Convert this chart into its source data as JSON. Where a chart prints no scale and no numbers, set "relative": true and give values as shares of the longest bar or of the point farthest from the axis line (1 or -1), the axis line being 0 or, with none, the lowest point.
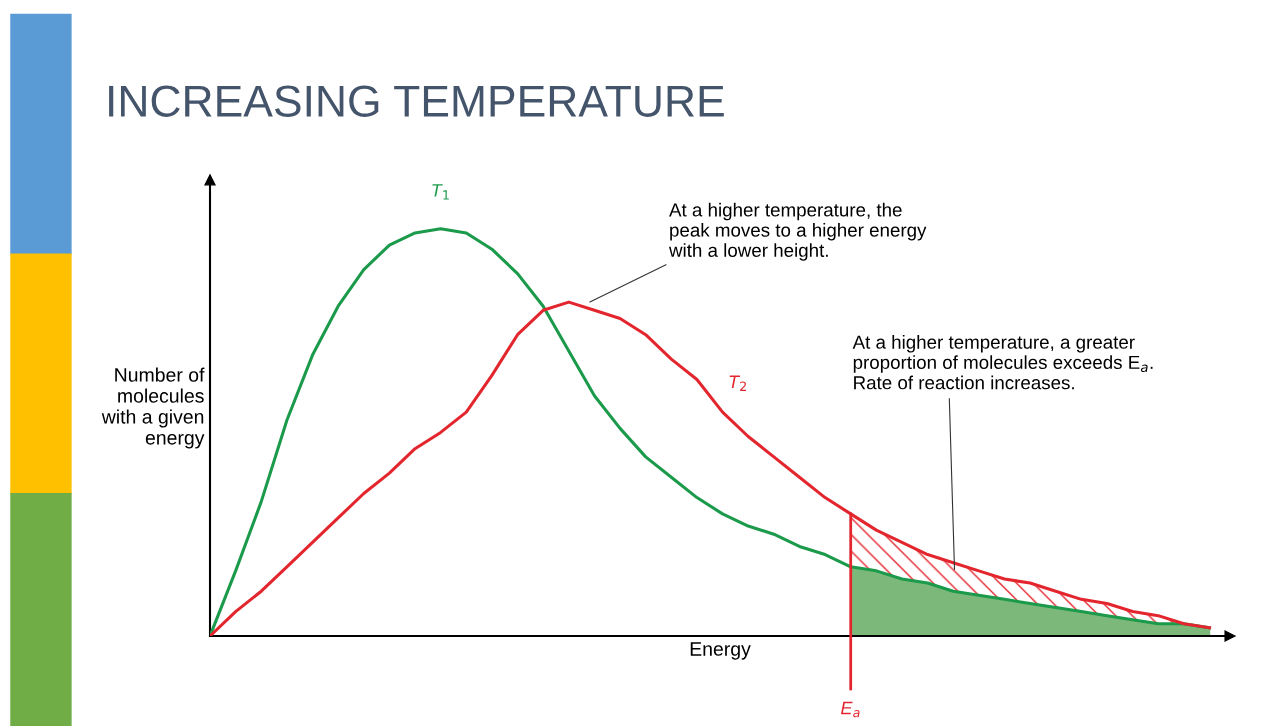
{
  "chart_data": {
    "type": "line",
    "title": "INCREASING TEMPERATURE",
    "xlabel": "Energy",
    "ylabel": "Number of\nmolecules\nwith a given\nenergy",
    "relative": true,
    "categories": [
      null,
      null,
      null,
      null,
      null,
      null,
      null,
      null,
      null,
      null,
      null,
      null,
      null,
      null,
      null,
      null,
      null,
      null,
      null,
      null,
      null,
      null,
      null,
      null,
      null,
      null,
      null,
      null,
      null,
      null,
      null,
      null,
      null,
      null,
      null,
      null,
      null,
      null,
      null,
      null
    ],
    "series": [
      {
        "name": "T$_{1}$",
        "color": "#1a9a4a",
        "values": [
          0,
          0.16,
          0.33,
          0.53,
          0.69,
          0.81,
          0.9,
          0.96,
          0.99,
          1.0,
          0.99,
          0.95,
          0.89,
          0.81,
          0.7,
          0.59,
          0.51,
          0.44,
          0.39,
          0.34,
          0.3,
          0.27,
          0.25,
          0.22,
          0.2,
          0.17,
          0.16,
          0.14,
          0.13,
          0.11,
          0.1,
          0.09,
          0.08,
          0.07,
          0.06,
          0.05,
          0.04,
          0.03,
          0.03,
          0.02
        ]
      },
      {
        "name": "T$_{2}$",
        "color": "#e3262e",
        "values": [
          0,
          0.06,
          0.11,
          0.17,
          0.23,
          0.29,
          0.35,
          0.4,
          0.46,
          0.5,
          0.55,
          0.64,
          0.74,
          0.8,
          0.82,
          0.8,
          0.78,
          0.74,
          0.68,
          0.63,
          0.55,
          0.49,
          0.44,
          0.39,
          0.34,
          0.3,
          0.26,
          0.23,
          0.2,
          0.18,
          0.16,
          0.14,
          0.13,
          0.11,
          0.09,
          0.08,
          0.06,
          0.05,
          0.03,
          0.02
        ]
      }
    ],
    "annotations": [
      "E$_{a}$",
      "At a higher temperature, the\npeak moves to a higher energy\nwith a lower height.",
      "At a higher temperature, a greater\nproportion of molecules exceeds E$_{a}$.\nRate of reaction increases."
    ],
    "grid": false,
    "legend": false,
    "tick_labels": false,
    "line_style": "solid",
    "marker": "none"
  }
}
